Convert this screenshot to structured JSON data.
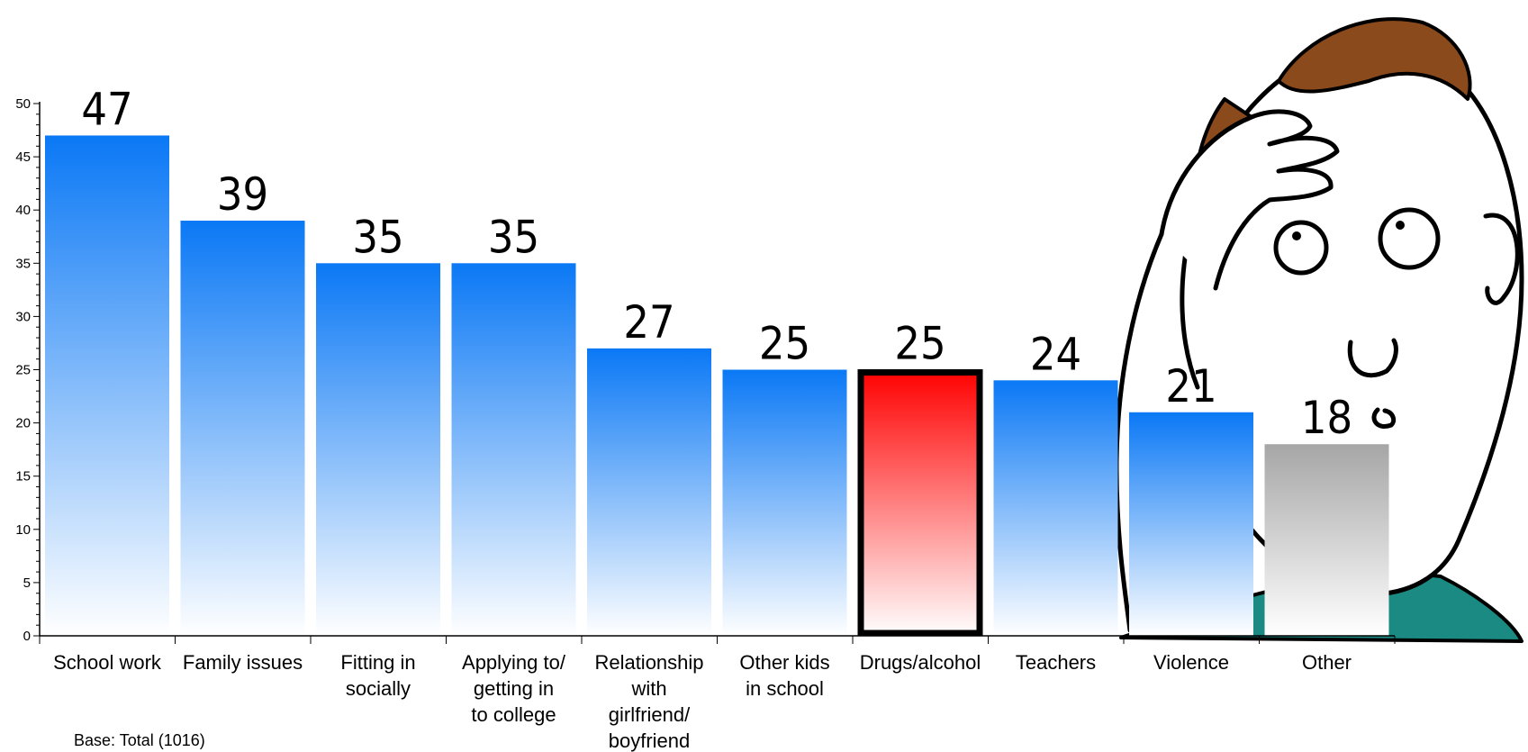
{
  "chart_data": {
    "type": "bar",
    "categories": [
      "School work",
      "Family issues",
      "Fitting in\nsocially",
      "Applying to/\ngetting in\nto college",
      "Relationship\nwith\ngirlfriend/\nboyfriend",
      "Other kids\nin school",
      "Drugs/alcohol",
      "Teachers",
      "Violence",
      "Other"
    ],
    "values": [
      47,
      39,
      35,
      35,
      27,
      25,
      25,
      24,
      21,
      18
    ],
    "value_labels": [
      "47",
      "39",
      "35",
      "35",
      "27",
      "25",
      "25",
      "24",
      "21",
      "18"
    ],
    "ylim": [
      0,
      50
    ],
    "yticks": [
      0,
      5,
      10,
      15,
      20,
      25,
      30,
      35,
      40,
      45,
      50
    ],
    "ytick_labels": [
      "0",
      "5",
      "10",
      "15",
      "20",
      "25",
      "30",
      "35",
      "40",
      "45",
      "50"
    ],
    "highlight_index": 6,
    "gray_index": 9,
    "colors": {
      "bar_top": "#0a78f5",
      "bar_bottom": "#ffffff",
      "highlight_top": "#ff0000",
      "highlight_bottom": "#ffffff",
      "highlight_border": "#000000",
      "gray_top": "#a6a6a6",
      "gray_bottom": "#ffffff"
    },
    "title": "",
    "xlabel": "",
    "ylabel": "",
    "grid": false,
    "legend": "none"
  },
  "footnote": "Base: Total (1016)",
  "illustration": {
    "icon": "worried-person-icon",
    "colors": {
      "hair": "#8b4a1c",
      "shirt": "#1a8a82",
      "outline": "#000000",
      "skin": "#ffffff"
    }
  }
}
